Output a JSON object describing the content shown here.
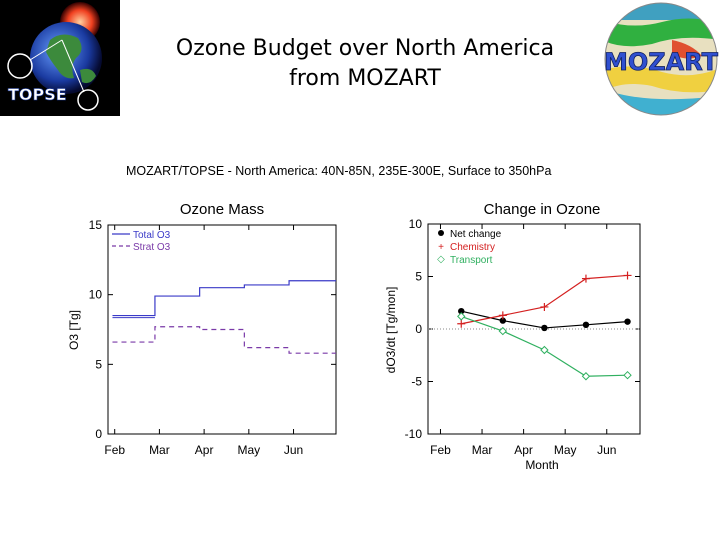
{
  "page": {
    "title_line1": "Ozone Budget over North America",
    "title_line2": "from MOZART",
    "left_logo_text": "TOPSE",
    "right_logo_text": "MOZART"
  },
  "figure_title": "MOZART/TOPSE - North America: 40N-85N, 235E-300E, Surface to 350hPa",
  "colors": {
    "total": "#3a3ac8",
    "strat": "#7a3aa8",
    "net": "#000000",
    "chemistry": "#d42020",
    "transport": "#30b060"
  },
  "chart_data": [
    {
      "type": "line",
      "title": "Ozone Mass",
      "xlabel": "",
      "ylabel": "O3 [Tg]",
      "ylim": [
        0,
        15
      ],
      "yticks": [
        0,
        5,
        10,
        15
      ],
      "months": [
        "Feb",
        "Mar",
        "Apr",
        "May",
        "Jun"
      ],
      "xlim": [
        -0.15,
        4.95
      ],
      "legend": "top-left",
      "legend_entries": [
        "Total O3",
        "Strat O3"
      ],
      "series": [
        {
          "name": "Total O3",
          "style": "step-solid",
          "segments": [
            [
              -0.05,
              0.9,
              8.5
            ],
            [
              0.9,
              1.9,
              9.9
            ],
            [
              1.9,
              2.9,
              10.5
            ],
            [
              2.9,
              3.9,
              10.7
            ],
            [
              3.9,
              4.95,
              11.0
            ]
          ]
        },
        {
          "name": "Strat O3",
          "style": "step-dashed",
          "segments": [
            [
              -0.05,
              0.9,
              6.6
            ],
            [
              0.9,
              1.9,
              7.7
            ],
            [
              1.9,
              2.9,
              7.5
            ],
            [
              2.9,
              3.9,
              6.2
            ],
            [
              3.9,
              4.95,
              5.8
            ]
          ]
        }
      ]
    },
    {
      "type": "line",
      "title": "Change in Ozone",
      "xlabel": "Month",
      "ylabel": "dO3/dt [Tg/mon]",
      "ylim": [
        -10,
        10
      ],
      "yticks": [
        -10,
        -5,
        0,
        5,
        10
      ],
      "months": [
        "Feb",
        "Mar",
        "Apr",
        "May",
        "Jun"
      ],
      "xlim": [
        -0.3,
        4.8
      ],
      "legend": "top-left",
      "zero_line": true,
      "series": [
        {
          "name": "Net change",
          "marker": "dot",
          "x": [
            0.5,
            1.5,
            2.5,
            3.5,
            4.5
          ],
          "values": [
            1.7,
            0.8,
            0.1,
            0.4,
            0.7
          ]
        },
        {
          "name": "Chemistry",
          "marker": "plus",
          "x": [
            0.5,
            1.5,
            2.5,
            3.5,
            4.5
          ],
          "values": [
            0.5,
            1.3,
            2.1,
            4.8,
            5.1
          ]
        },
        {
          "name": "Transport",
          "marker": "diamond",
          "x": [
            0.5,
            1.5,
            2.5,
            3.5,
            4.5
          ],
          "values": [
            1.2,
            -0.2,
            -2.0,
            -4.5,
            -4.4
          ]
        }
      ]
    }
  ]
}
